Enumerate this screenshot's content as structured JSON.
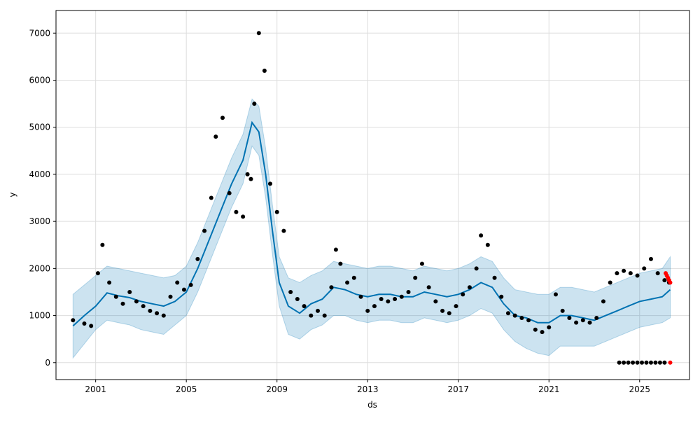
{
  "chart_data": {
    "type": "line",
    "title": "",
    "xlabel": "ds",
    "ylabel": "y",
    "xlim": [
      1999.25,
      2027.2
    ],
    "ylim": [
      -360,
      7480
    ],
    "grid": true,
    "x_ticks": [
      2001,
      2005,
      2009,
      2013,
      2017,
      2021,
      2025
    ],
    "y_ticks": [
      0,
      1000,
      2000,
      3000,
      4000,
      5000,
      6000,
      7000
    ],
    "colors": {
      "actual": "#000000",
      "forecast_line": "#0072B2",
      "interval_fill": "#0072B2",
      "holdout": "#ff0000",
      "grid": "#dddddd"
    },
    "series": [
      {
        "kind": "observed_points",
        "x": [
          2000.0,
          2000.5,
          2000.8,
          2001.1,
          2001.3,
          2001.6,
          2001.9,
          2002.2,
          2002.5,
          2002.8,
          2003.1,
          2003.4,
          2003.7,
          2004.0,
          2004.3,
          2004.6,
          2004.9,
          2005.2,
          2005.5,
          2005.8,
          2006.1,
          2006.3,
          2006.6,
          2006.9,
          2007.2,
          2007.5,
          2007.7,
          2007.85,
          2008.0,
          2008.2,
          2008.45,
          2008.7,
          2009.0,
          2009.3,
          2009.6,
          2009.9,
          2010.2,
          2010.5,
          2010.8,
          2011.1,
          2011.4,
          2011.6,
          2011.8,
          2012.1,
          2012.4,
          2012.7,
          2013.0,
          2013.3,
          2013.6,
          2013.9,
          2014.2,
          2014.5,
          2014.8,
          2015.1,
          2015.4,
          2015.7,
          2016.0,
          2016.3,
          2016.6,
          2016.9,
          2017.2,
          2017.5,
          2017.8,
          2018.0,
          2018.3,
          2018.6,
          2018.9,
          2019.2,
          2019.5,
          2019.8,
          2020.1,
          2020.4,
          2020.7,
          2021.0,
          2021.3,
          2021.6,
          2021.9,
          2022.2,
          2022.5,
          2022.8,
          2023.1,
          2023.4,
          2023.7,
          2024.0,
          2024.3,
          2024.6,
          2024.9,
          2025.2,
          2025.5,
          2025.8,
          2026.1,
          2026.3
        ],
        "y": [
          900,
          830,
          780,
          1900,
          2500,
          1700,
          1400,
          1250,
          1500,
          1300,
          1200,
          1100,
          1050,
          1000,
          1400,
          1700,
          1550,
          1650,
          2200,
          2800,
          3500,
          4800,
          5200,
          3600,
          3200,
          3100,
          4000,
          3900,
          5500,
          7000,
          6200,
          3800,
          3200,
          2800,
          1500,
          1350,
          1200,
          1000,
          1100,
          1000,
          1600,
          2400,
          2100,
          1700,
          1800,
          1400,
          1100,
          1200,
          1350,
          1300,
          1350,
          1400,
          1500,
          1800,
          2100,
          1600,
          1300,
          1100,
          1050,
          1200,
          1450,
          1600,
          2000,
          2700,
          2500,
          1800,
          1400,
          1050,
          1000,
          950,
          900,
          700,
          650,
          750,
          1450,
          1100,
          950,
          850,
          900,
          850,
          950,
          1300,
          1700,
          1900,
          1950,
          1900,
          1850,
          2000,
          2200,
          1900,
          1750,
          1700
        ]
      },
      {
        "kind": "forecast_yhat",
        "x": [
          2000.0,
          2000.5,
          2001.0,
          2001.5,
          2002.0,
          2002.5,
          2003.0,
          2003.5,
          2004.0,
          2004.5,
          2005.0,
          2005.5,
          2006.0,
          2006.5,
          2007.0,
          2007.5,
          2007.9,
          2008.2,
          2008.5,
          2008.8,
          2009.1,
          2009.5,
          2010.0,
          2010.5,
          2011.0,
          2011.5,
          2012.0,
          2012.5,
          2013.0,
          2013.5,
          2014.0,
          2014.5,
          2015.0,
          2015.5,
          2016.0,
          2016.5,
          2017.0,
          2017.5,
          2018.0,
          2018.5,
          2019.0,
          2019.5,
          2020.0,
          2020.5,
          2021.0,
          2021.5,
          2022.0,
          2022.5,
          2023.0,
          2023.5,
          2024.0,
          2024.5,
          2025.0,
          2025.5,
          2026.0,
          2026.35
        ],
        "y": [
          780,
          1000,
          1200,
          1480,
          1420,
          1380,
          1300,
          1250,
          1200,
          1300,
          1500,
          2000,
          2600,
          3200,
          3800,
          4300,
          5100,
          4900,
          4000,
          2800,
          1700,
          1200,
          1050,
          1250,
          1350,
          1600,
          1550,
          1450,
          1400,
          1450,
          1450,
          1400,
          1400,
          1500,
          1450,
          1400,
          1450,
          1550,
          1700,
          1600,
          1250,
          1000,
          950,
          850,
          850,
          1000,
          1000,
          950,
          900,
          1000,
          1100,
          1200,
          1300,
          1350,
          1400,
          1550
        ]
      },
      {
        "kind": "interval",
        "x": [
          2000.0,
          2000.5,
          2001.0,
          2001.5,
          2002.0,
          2002.5,
          2003.0,
          2003.5,
          2004.0,
          2004.5,
          2005.0,
          2005.5,
          2006.0,
          2006.5,
          2007.0,
          2007.5,
          2007.9,
          2008.2,
          2008.5,
          2008.8,
          2009.1,
          2009.5,
          2010.0,
          2010.5,
          2011.0,
          2011.5,
          2012.0,
          2012.5,
          2013.0,
          2013.5,
          2014.0,
          2014.5,
          2015.0,
          2015.5,
          2016.0,
          2016.5,
          2017.0,
          2017.5,
          2018.0,
          2018.5,
          2019.0,
          2019.5,
          2020.0,
          2020.5,
          2021.0,
          2021.5,
          2022.0,
          2022.5,
          2023.0,
          2023.5,
          2024.0,
          2024.5,
          2025.0,
          2025.5,
          2026.0,
          2026.35
        ],
        "lower": [
          100,
          400,
          700,
          900,
          850,
          800,
          700,
          650,
          600,
          800,
          1000,
          1500,
          2100,
          2700,
          3300,
          3800,
          4600,
          4400,
          3500,
          2300,
          1200,
          600,
          500,
          700,
          800,
          1000,
          1000,
          900,
          850,
          900,
          900,
          850,
          850,
          950,
          900,
          850,
          900,
          1000,
          1150,
          1050,
          700,
          450,
          300,
          200,
          150,
          350,
          350,
          350,
          350,
          450,
          550,
          650,
          750,
          800,
          850,
          950
        ],
        "upper": [
          1450,
          1650,
          1850,
          2050,
          2000,
          1950,
          1900,
          1850,
          1800,
          1850,
          2050,
          2550,
          3150,
          3750,
          4350,
          4850,
          5600,
          5450,
          4550,
          3350,
          2250,
          1800,
          1700,
          1850,
          1950,
          2150,
          2100,
          2050,
          2000,
          2050,
          2050,
          2000,
          1950,
          2050,
          2000,
          1950,
          2000,
          2100,
          2250,
          2150,
          1800,
          1550,
          1500,
          1450,
          1450,
          1600,
          1600,
          1550,
          1500,
          1600,
          1700,
          1800,
          1900,
          1950,
          2000,
          2250
        ]
      },
      {
        "kind": "zero_points",
        "x": [
          2024.1,
          2024.3,
          2024.5,
          2024.7,
          2024.9,
          2025.1,
          2025.3,
          2025.5,
          2025.7,
          2025.9,
          2026.1
        ],
        "y": [
          0,
          0,
          0,
          0,
          0,
          0,
          0,
          0,
          0,
          0,
          0
        ]
      },
      {
        "kind": "holdout_points",
        "x": [
          2026.15,
          2026.2,
          2026.25,
          2026.3,
          2026.35,
          2026.35
        ],
        "y": [
          1900,
          1850,
          1800,
          1750,
          1700,
          0
        ]
      }
    ]
  }
}
